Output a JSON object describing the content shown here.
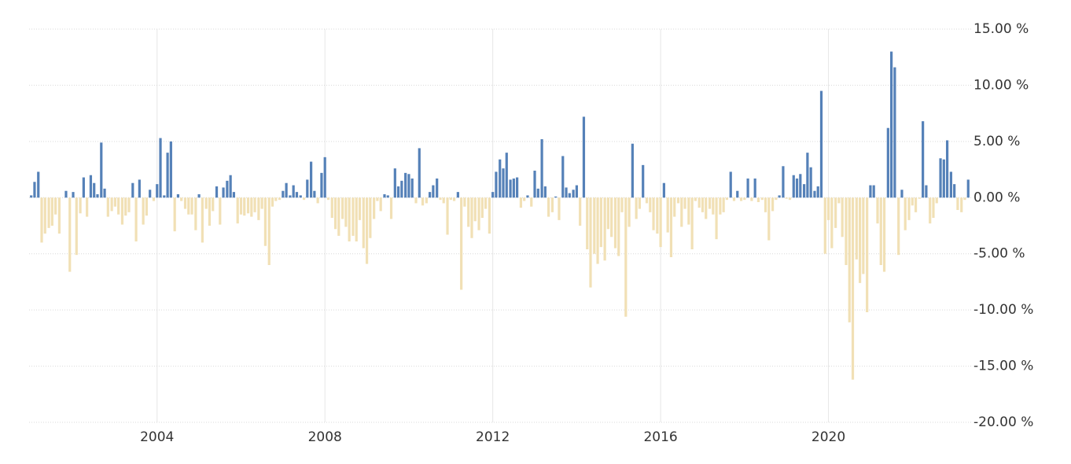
{
  "chart_data": {
    "type": "bar",
    "x": [
      2001,
      2001.08,
      2001.17,
      2001.25,
      2001.33,
      2001.42,
      2001.5,
      2001.58,
      2001.67,
      2001.75,
      2001.83,
      2001.92,
      2002,
      2002.08,
      2002.17,
      2002.25,
      2002.33,
      2002.42,
      2002.5,
      2002.58,
      2002.67,
      2002.75,
      2002.83,
      2002.92,
      2003,
      2003.08,
      2003.17,
      2003.25,
      2003.33,
      2003.42,
      2003.5,
      2003.58,
      2003.67,
      2003.75,
      2003.83,
      2003.92,
      2004,
      2004.08,
      2004.17,
      2004.25,
      2004.33,
      2004.42,
      2004.5,
      2004.58,
      2004.67,
      2004.75,
      2004.83,
      2004.92,
      2005,
      2005.08,
      2005.17,
      2005.25,
      2005.33,
      2005.42,
      2005.5,
      2005.58,
      2005.67,
      2005.75,
      2005.83,
      2005.92,
      2006,
      2006.08,
      2006.17,
      2006.25,
      2006.33,
      2006.42,
      2006.5,
      2006.58,
      2006.67,
      2006.75,
      2006.83,
      2006.92,
      2007,
      2007.08,
      2007.17,
      2007.25,
      2007.33,
      2007.42,
      2007.5,
      2007.58,
      2007.67,
      2007.75,
      2007.83,
      2007.92,
      2008,
      2008.08,
      2008.17,
      2008.25,
      2008.33,
      2008.42,
      2008.5,
      2008.58,
      2008.67,
      2008.75,
      2008.83,
      2008.92,
      2009,
      2009.08,
      2009.17,
      2009.25,
      2009.33,
      2009.42,
      2009.5,
      2009.58,
      2009.67,
      2009.75,
      2009.83,
      2009.92,
      2010,
      2010.08,
      2010.17,
      2010.25,
      2010.33,
      2010.42,
      2010.5,
      2010.58,
      2010.67,
      2010.75,
      2010.83,
      2010.92,
      2011,
      2011.08,
      2011.17,
      2011.25,
      2011.33,
      2011.42,
      2011.5,
      2011.58,
      2011.67,
      2011.75,
      2011.83,
      2011.92,
      2012,
      2012.08,
      2012.17,
      2012.25,
      2012.33,
      2012.42,
      2012.5,
      2012.58,
      2012.67,
      2012.75,
      2012.83,
      2012.92,
      2013,
      2013.08,
      2013.17,
      2013.25,
      2013.33,
      2013.42,
      2013.5,
      2013.58,
      2013.67,
      2013.75,
      2013.83,
      2013.92,
      2014,
      2014.08,
      2014.17,
      2014.25,
      2014.33,
      2014.42,
      2014.5,
      2014.58,
      2014.67,
      2014.75,
      2014.83,
      2014.92,
      2015,
      2015.08,
      2015.17,
      2015.25,
      2015.33,
      2015.42,
      2015.5,
      2015.58,
      2015.67,
      2015.75,
      2015.83,
      2015.92,
      2016,
      2016.08,
      2016.17,
      2016.25,
      2016.33,
      2016.42,
      2016.5,
      2016.58,
      2016.67,
      2016.75,
      2016.83,
      2016.92,
      2017,
      2017.08,
      2017.17,
      2017.25,
      2017.33,
      2017.42,
      2017.5,
      2017.58,
      2017.67,
      2017.75,
      2017.83,
      2017.92,
      2018,
      2018.08,
      2018.17,
      2018.25,
      2018.33,
      2018.42,
      2018.5,
      2018.58,
      2018.67,
      2018.75,
      2018.83,
      2018.92,
      2019,
      2019.08,
      2019.17,
      2019.25,
      2019.33,
      2019.42,
      2019.5,
      2019.58,
      2019.67,
      2019.75,
      2019.83,
      2019.92,
      2020,
      2020.08,
      2020.17,
      2020.25,
      2020.33,
      2020.42,
      2020.5,
      2020.58,
      2020.67,
      2020.75,
      2020.83,
      2020.92,
      2021,
      2021.08,
      2021.17,
      2021.25,
      2021.33,
      2021.42,
      2021.5,
      2021.58,
      2021.67,
      2021.75,
      2021.83,
      2021.92,
      2022,
      2022.08,
      2022.17,
      2022.25,
      2022.33,
      2022.42,
      2022.5,
      2022.58,
      2022.67,
      2022.75,
      2022.83,
      2022.92,
      2023,
      2023.08,
      2023.17,
      2023.25,
      2023.33
    ],
    "values": [
      0.2,
      1.4,
      2.3,
      -4.0,
      -3.2,
      -2.7,
      -2.5,
      -1.5,
      -3.2,
      0,
      0.6,
      -6.6,
      0.5,
      -5.1,
      -1.4,
      1.8,
      -1.7,
      2.0,
      1.3,
      0.3,
      4.9,
      0.8,
      -1.7,
      -1.2,
      -0.8,
      -1.5,
      -2.4,
      -1.6,
      -1.3,
      1.3,
      -3.9,
      1.6,
      -2.4,
      -1.6,
      0.7,
      -0.3,
      1.2,
      5.3,
      0.2,
      4.0,
      5.0,
      -3.0,
      0.3,
      -0.3,
      -1.0,
      -1.5,
      -1.5,
      -2.9,
      0.3,
      -4.0,
      -1.0,
      -2.5,
      -1.2,
      1.0,
      -2.4,
      0.9,
      1.5,
      2.0,
      0.5,
      -2.3,
      -1.5,
      -1.6,
      -1.4,
      -1.7,
      -1.3,
      -2.0,
      -1.0,
      -4.3,
      -6.0,
      -0.8,
      -0.3,
      -0.2,
      0.6,
      1.3,
      0.2,
      1.1,
      0.5,
      0.2,
      -0.2,
      1.6,
      3.2,
      0.6,
      -0.5,
      2.2,
      3.6,
      -0.2,
      -1.8,
      -2.8,
      -3.4,
      -1.9,
      -2.6,
      -3.9,
      -3.4,
      -3.9,
      -2.0,
      -4.5,
      -5.9,
      -3.6,
      -1.9,
      -0.3,
      -1.2,
      0.3,
      0.2,
      -1.9,
      2.6,
      1.0,
      1.5,
      2.2,
      2.1,
      1.7,
      -0.5,
      4.4,
      -0.7,
      -0.5,
      0.5,
      1.1,
      1.7,
      -0.2,
      -0.5,
      -3.3,
      -0.2,
      -0.3,
      0.5,
      -8.2,
      -0.8,
      -2.6,
      -3.6,
      -2.1,
      -2.9,
      -1.8,
      -1.0,
      -3.2,
      0.5,
      2.3,
      3.4,
      2.6,
      4.0,
      1.6,
      1.7,
      1.8,
      -0.9,
      -0.3,
      0.2,
      -0.8,
      2.4,
      0.8,
      5.2,
      1.0,
      -1.7,
      -1.3,
      0.1,
      -2.0,
      3.7,
      0.9,
      0.4,
      0.7,
      1.1,
      -2.5,
      7.2,
      -4.6,
      -8.0,
      -5.0,
      -5.9,
      -4.4,
      -5.6,
      -2.8,
      -3.5,
      -4.5,
      -5.2,
      -1.3,
      -10.6,
      -2.6,
      4.8,
      -1.9,
      -1.0,
      2.9,
      -0.5,
      -1.3,
      -2.9,
      -3.2,
      -4.4,
      1.3,
      -3.1,
      -5.3,
      -1.7,
      -0.5,
      -2.6,
      -1.0,
      -2.4,
      -4.6,
      -0.3,
      -0.9,
      -1.3,
      -1.9,
      -1.0,
      -1.5,
      -3.7,
      -1.5,
      -1.3,
      -0.2,
      2.3,
      -0.3,
      0.6,
      -0.3,
      -0.2,
      1.7,
      -0.3,
      1.7,
      -0.4,
      -0.2,
      -1.3,
      -3.8,
      -1.2,
      -0.2,
      0.2,
      2.8,
      -0.1,
      -0.2,
      2.0,
      1.7,
      2.1,
      1.2,
      4.0,
      2.7,
      0.6,
      1.0,
      9.5,
      -5.0,
      -2.0,
      -4.5,
      -2.7,
      -0.5,
      -3.5,
      -6.0,
      -11.1,
      -16.2,
      -5.5,
      -7.6,
      -6.8,
      -10.2,
      1.1,
      1.1,
      -2.3,
      -6.0,
      -6.6,
      6.2,
      13.0,
      11.6,
      -5.1,
      0.7,
      -2.9,
      -2.0,
      -0.7,
      -1.3,
      -0.1,
      6.8,
      1.1,
      -2.3,
      -1.8,
      -0.5,
      3.5,
      3.4,
      5.1,
      2.3,
      1.2,
      -1.1,
      -1.3,
      -0.2,
      1.6
    ],
    "color": "#5581b8",
    "negative_color": "#f1e0b5",
    "xlim": [
      2000.95,
      2023.4
    ],
    "xticks": [
      2004,
      2008,
      2012,
      2016,
      2020
    ],
    "ylim": [
      -20,
      15
    ],
    "yticks": [
      {
        "value": -20,
        "label": "-20.00 %"
      },
      {
        "value": -15,
        "label": "-15.00 %"
      },
      {
        "value": -10,
        "label": "-10.00 %"
      },
      {
        "value": -5,
        "label": "-5.00 %"
      },
      {
        "value": 0,
        "label": "0.00 %"
      },
      {
        "value": 5,
        "label": "5.00 %"
      },
      {
        "value": 10,
        "label": "10.00 %"
      },
      {
        "value": 15,
        "label": "15.00 %"
      }
    ],
    "grid": true
  }
}
